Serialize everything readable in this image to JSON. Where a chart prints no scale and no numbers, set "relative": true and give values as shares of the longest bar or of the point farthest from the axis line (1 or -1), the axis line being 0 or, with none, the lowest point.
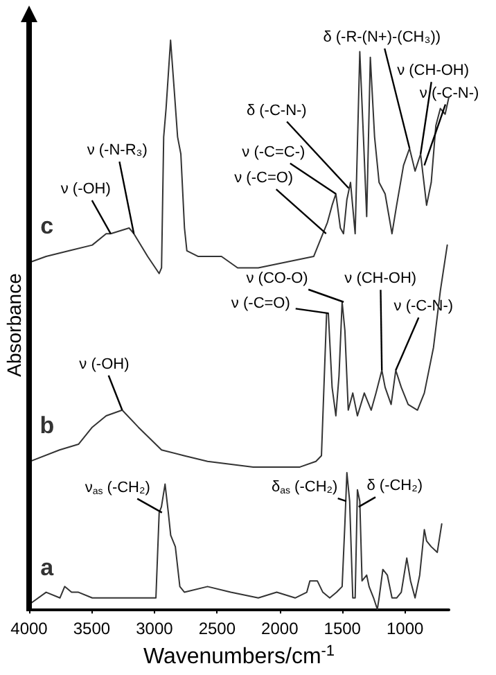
{
  "chart_data": {
    "type": "line",
    "xlabel": "Wavenumbers/cm$^{-1}$",
    "ylabel": "Absorbance",
    "xlim": [
      4000,
      650
    ],
    "xticks": [
      4000,
      3500,
      3000,
      2500,
      2000,
      1500,
      1000
    ],
    "relative": true,
    "grid": false,
    "legend": false,
    "marker": "none",
    "line_style": "solid",
    "series": [
      {
        "name": "a",
        "color": "#333333",
        "x": [
          3990,
          3864,
          3754,
          3716,
          3661,
          3606,
          3496,
          3349,
          3202,
          3017,
          2988,
          2962,
          2944,
          2915,
          2889,
          2870,
          2833,
          2797,
          2760,
          2576,
          2391,
          2171,
          2024,
          1877,
          1784,
          1759,
          1700,
          1656,
          1601,
          1546,
          1502,
          1480,
          1464,
          1442,
          1417,
          1398,
          1380,
          1361,
          1343,
          1306,
          1287,
          1251,
          1221,
          1207,
          1177,
          1141,
          1104,
          1067,
          1030,
          986,
          956,
          920,
          883,
          846,
          828,
          791,
          743,
          707
        ],
        "values": [
          0.01,
          0.03,
          0.02,
          0.04,
          0.03,
          0.03,
          0.02,
          0.02,
          0.02,
          0.02,
          0.02,
          0.17,
          0.18,
          0.22,
          0.17,
          0.13,
          0.11,
          0.04,
          0.03,
          0.04,
          0.03,
          0.02,
          0.03,
          0.02,
          0.03,
          0.05,
          0.05,
          0.03,
          0.02,
          0.03,
          0.04,
          0.15,
          0.24,
          0.19,
          0.02,
          0.02,
          0.21,
          0.19,
          0.05,
          0.06,
          0.04,
          0.02,
          0.0,
          0.02,
          0.07,
          0.06,
          0.02,
          0.02,
          0.03,
          0.09,
          0.05,
          0.02,
          0.06,
          0.14,
          0.12,
          0.11,
          0.1,
          0.15
        ]
      },
      {
        "name": "b",
        "color": "#333333",
        "x": [
          3990,
          3757,
          3606,
          3496,
          3385,
          3257,
          3128,
          2943,
          2764,
          2576,
          2212,
          1839,
          1711,
          1667,
          1626,
          1612,
          1582,
          1552,
          1527,
          1502,
          1480,
          1453,
          1417,
          1380,
          1325,
          1270,
          1232,
          1185,
          1159,
          1111,
          1074,
          1030,
          975,
          901,
          846,
          773,
          718,
          663
        ],
        "values": [
          0.26,
          0.28,
          0.29,
          0.32,
          0.34,
          0.35,
          0.32,
          0.28,
          0.27,
          0.26,
          0.25,
          0.25,
          0.26,
          0.27,
          0.52,
          0.52,
          0.39,
          0.34,
          0.41,
          0.54,
          0.49,
          0.35,
          0.38,
          0.34,
          0.38,
          0.35,
          0.38,
          0.42,
          0.39,
          0.36,
          0.42,
          0.39,
          0.36,
          0.35,
          0.38,
          0.46,
          0.56,
          0.64
        ]
      },
      {
        "name": "c",
        "color": "#333333",
        "x": [
          3990,
          3864,
          3680,
          3496,
          3385,
          3349,
          3202,
          3164,
          3054,
          2962,
          2943,
          2926,
          2907,
          2871,
          2841,
          2815,
          2789,
          2760,
          2741,
          2650,
          2465,
          2336,
          2171,
          1950,
          1729,
          1674,
          1619,
          1582,
          1552,
          1516,
          1491,
          1464,
          1435,
          1398,
          1361,
          1332,
          1306,
          1277,
          1243,
          1207,
          1159,
          1104,
          1067,
          1012,
          964,
          920,
          876,
          828,
          791,
          754,
          718,
          680,
          650
        ],
        "values": [
          0.61,
          0.62,
          0.63,
          0.64,
          0.66,
          0.66,
          0.67,
          0.66,
          0.62,
          0.59,
          0.6,
          0.83,
          0.88,
          1,
          0.91,
          0.83,
          0.8,
          0.67,
          0.63,
          0.62,
          0.62,
          0.6,
          0.6,
          0.61,
          0.62,
          0.65,
          0.68,
          0.71,
          0.73,
          0.67,
          0.66,
          0.72,
          0.75,
          0.66,
          0.98,
          0.83,
          0.69,
          0.97,
          0.83,
          0.75,
          0.73,
          0.66,
          0.71,
          0.78,
          0.81,
          0.77,
          0.8,
          0.71,
          0.75,
          0.85,
          0.88,
          0.87,
          0.9
        ]
      }
    ],
    "annotations": [
      {
        "text": "ν (-OH)",
        "x": 3349,
        "y": 0.66
      },
      {
        "text": "ν (-N-R₃)",
        "x": 3164,
        "y": 0.66
      },
      {
        "text": "ν (-C=O)",
        "x": 1630,
        "y": 0.66
      },
      {
        "text": "ν (-C=C-)",
        "x": 1552,
        "y": 0.73
      },
      {
        "text": "δ (-C-N-)",
        "x": 1450,
        "y": 0.74
      },
      {
        "text": "δ (-R-(N+)-(CH₃))",
        "x": 964,
        "y": 0.81
      },
      {
        "text": "ν (CH-OH)",
        "x": 876,
        "y": 0.8
      },
      {
        "text": "ν (-C-N-)",
        "x": 846,
        "y": 0.78
      },
      {
        "text": "ν (-OH)",
        "x": 3257,
        "y": 0.35
      },
      {
        "text": "ν (CO-O)",
        "x": 1490,
        "y": 0.54
      },
      {
        "text": "ν (-C=O)",
        "x": 1610,
        "y": 0.52
      },
      {
        "text": "ν (CH-OH)",
        "x": 1185,
        "y": 0.42
      },
      {
        "text": "ν (-C-N-)",
        "x": 1074,
        "y": 0.42
      },
      {
        "text": "ν$_{as}$ (-CH₂)",
        "x": 2940,
        "y": 0.17
      },
      {
        "text": "δ$_{as}$ (-CH₂)",
        "x": 1470,
        "y": 0.19
      },
      {
        "text": "δ (-CH₂)",
        "x": 1370,
        "y": 0.18
      }
    ]
  }
}
